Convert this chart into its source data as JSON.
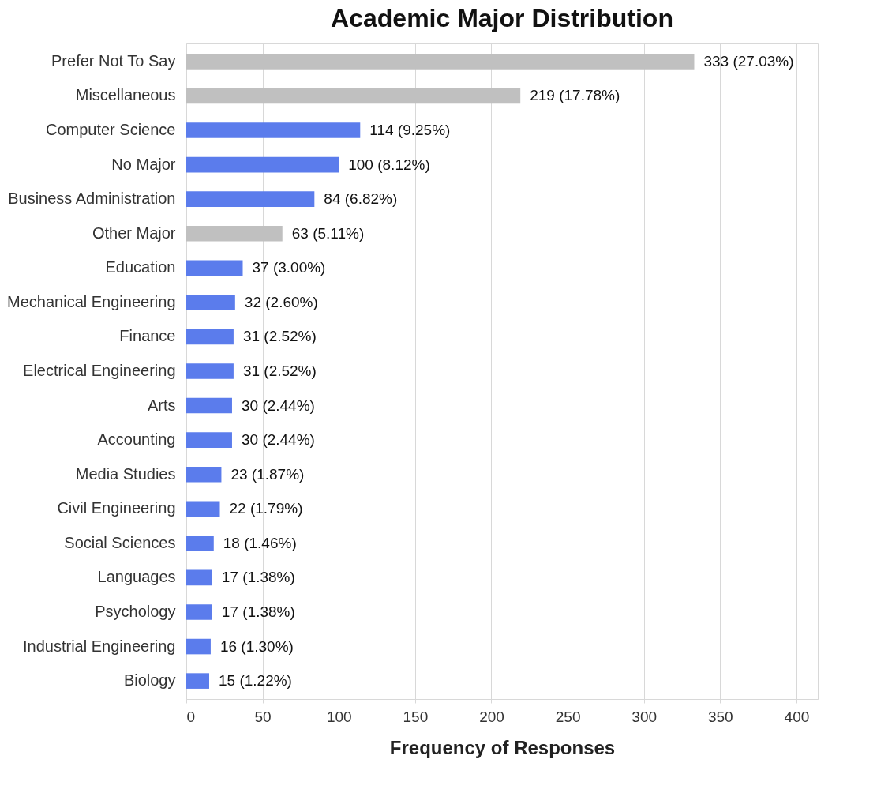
{
  "chart_data": {
    "type": "bar",
    "orientation": "horizontal",
    "title": "Academic Major Distribution",
    "xlabel": "Frequency of Responses",
    "categories": [
      "Prefer Not To Say",
      "Miscellaneous",
      "Computer Science",
      "No Major",
      "Business Administration",
      "Other Major",
      "Education",
      "Mechanical Engineering",
      "Finance",
      "Electrical Engineering",
      "Arts",
      "Accounting",
      "Media Studies",
      "Civil Engineering",
      "Social Sciences",
      "Languages",
      "Psychology",
      "Industrial Engineering",
      "Biology"
    ],
    "values": [
      333,
      219,
      114,
      100,
      84,
      63,
      37,
      32,
      31,
      31,
      30,
      30,
      23,
      22,
      18,
      17,
      17,
      16,
      15
    ],
    "colors": [
      "#c0c0c0",
      "#c0c0c0",
      "#5b7cec",
      "#5b7cec",
      "#5b7cec",
      "#c0c0c0",
      "#5b7cec",
      "#5b7cec",
      "#5b7cec",
      "#5b7cec",
      "#5b7cec",
      "#5b7cec",
      "#5b7cec",
      "#5b7cec",
      "#5b7cec",
      "#5b7cec",
      "#5b7cec",
      "#5b7cec",
      "#5b7cec"
    ],
    "value_labels": [
      "333 (27.03%)",
      "219 (17.78%)",
      "114 (9.25%)",
      "100 (8.12%)",
      "84 (6.82%)",
      "63 (5.11%)",
      "37 (3.00%)",
      "32 (2.60%)",
      "31 (2.52%)",
      "31 (2.52%)",
      "30 (2.44%)",
      "30 (2.44%)",
      "23 (1.87%)",
      "22 (1.79%)",
      "18 (1.46%)",
      "17 (1.38%)",
      "17 (1.38%)",
      "16 (1.30%)",
      "15 (1.22%)"
    ],
    "xlim": [
      0,
      414
    ],
    "xticks": [
      0,
      50,
      100,
      150,
      200,
      250,
      300,
      350,
      400
    ],
    "grid": "x"
  }
}
